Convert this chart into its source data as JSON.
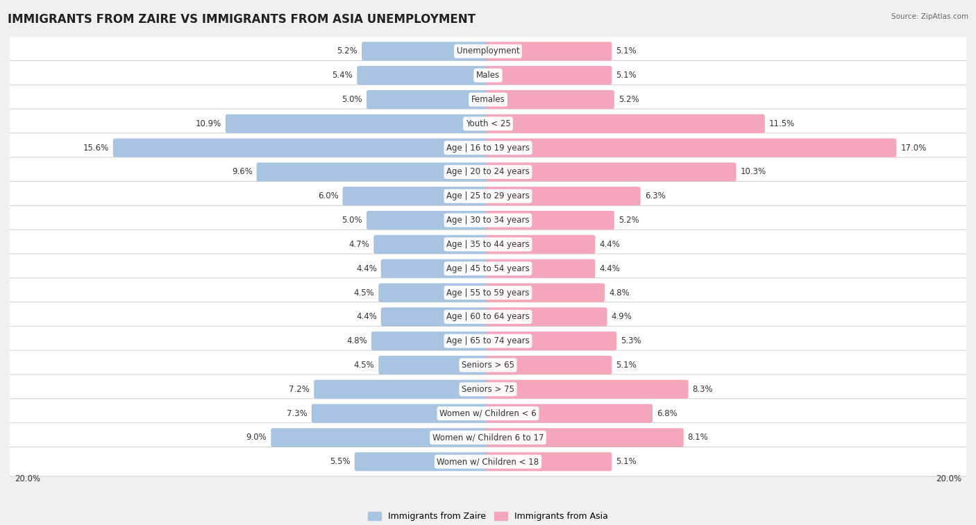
{
  "title": "IMMIGRANTS FROM ZAIRE VS IMMIGRANTS FROM ASIA UNEMPLOYMENT",
  "source": "Source: ZipAtlas.com",
  "categories": [
    "Unemployment",
    "Males",
    "Females",
    "Youth < 25",
    "Age | 16 to 19 years",
    "Age | 20 to 24 years",
    "Age | 25 to 29 years",
    "Age | 30 to 34 years",
    "Age | 35 to 44 years",
    "Age | 45 to 54 years",
    "Age | 55 to 59 years",
    "Age | 60 to 64 years",
    "Age | 65 to 74 years",
    "Seniors > 65",
    "Seniors > 75",
    "Women w/ Children < 6",
    "Women w/ Children 6 to 17",
    "Women w/ Children < 18"
  ],
  "zaire_values": [
    5.2,
    5.4,
    5.0,
    10.9,
    15.6,
    9.6,
    6.0,
    5.0,
    4.7,
    4.4,
    4.5,
    4.4,
    4.8,
    4.5,
    7.2,
    7.3,
    9.0,
    5.5
  ],
  "asia_values": [
    5.1,
    5.1,
    5.2,
    11.5,
    17.0,
    10.3,
    6.3,
    5.2,
    4.4,
    4.4,
    4.8,
    4.9,
    5.3,
    5.1,
    8.3,
    6.8,
    8.1,
    5.1
  ],
  "zaire_color": "#a8c4e0",
  "asia_color": "#f4a7bb",
  "zaire_label": "Immigrants from Zaire",
  "asia_label": "Immigrants from Asia",
  "max_value": 20.0,
  "bg_color": "#f0f0f0",
  "title_fontsize": 12,
  "label_fontsize": 8.5,
  "value_fontsize": 8.5
}
